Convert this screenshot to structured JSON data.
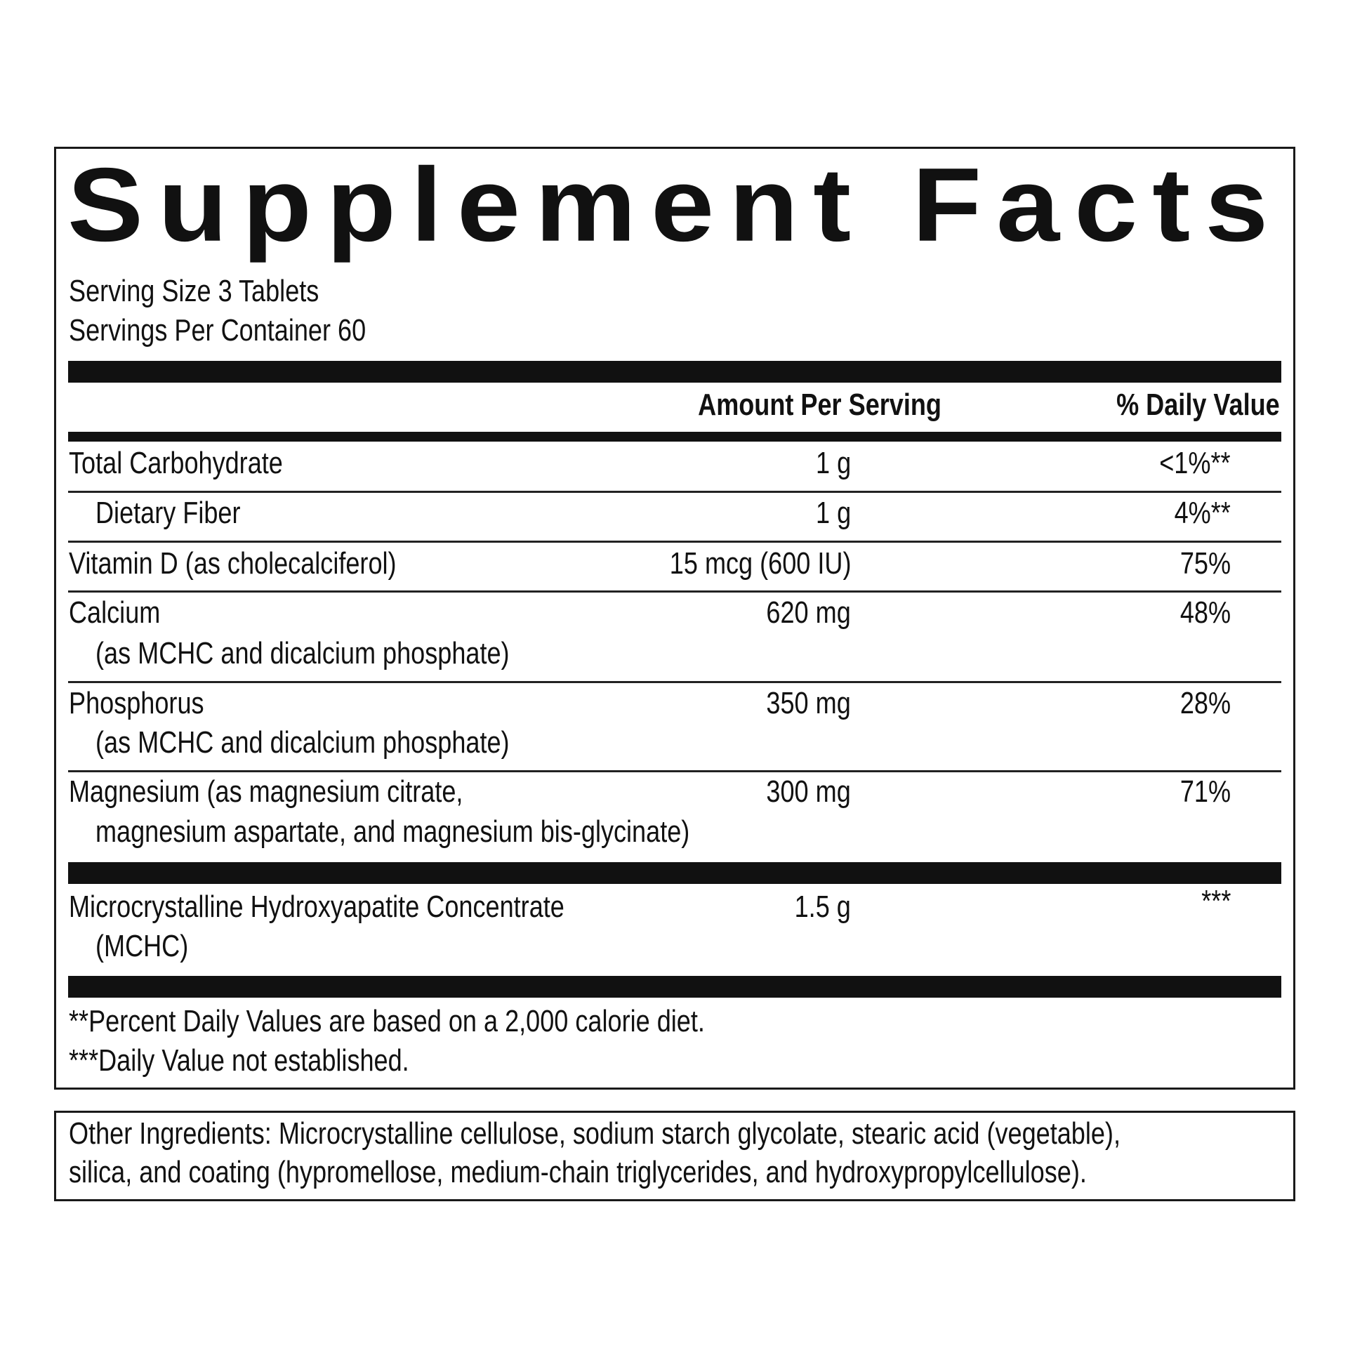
{
  "title": "Supplement Facts",
  "serving_size": "Serving Size 3 Tablets",
  "servings_per_container": "Servings Per Container 60",
  "header": {
    "amount": "Amount Per Serving",
    "daily_value": "% Daily Value"
  },
  "rows": [
    {
      "name": "Total Carbohydrate",
      "amount": "1 g",
      "dv": "<1%**"
    },
    {
      "name": "Dietary Fiber",
      "amount": "1 g",
      "dv": "4%**"
    },
    {
      "name": "Vitamin D (as cholecalciferol)",
      "amount": "15 mcg (600 IU)",
      "dv": "75%"
    },
    {
      "name": "Calcium",
      "sub": "(as MCHC and dicalcium phosphate)",
      "amount": "620 mg",
      "dv": "48%"
    },
    {
      "name": "Phosphorus",
      "sub": "(as MCHC and dicalcium phosphate)",
      "amount": "350 mg",
      "dv": "28%"
    },
    {
      "name": "Magnesium (as magnesium citrate,",
      "sub": "magnesium aspartate, and magnesium bis-glycinate)",
      "amount": "300 mg",
      "dv": "71%"
    },
    {
      "name": "Microcrystalline Hydroxyapatite Concentrate",
      "sub": "(MCHC)",
      "amount": "1.5 g",
      "dv": "***"
    }
  ],
  "footnotes": [
    "**Percent Daily Values are based on a 2,000 calorie diet.",
    "***Daily Value not established."
  ],
  "other_ingredients": [
    "Other Ingredients: Microcrystalline cellulose, sodium starch glycolate, stearic acid (vegetable),",
    "silica, and coating (hypromellose, medium-chain triglycerides, and hydroxypropylcellulose)."
  ]
}
